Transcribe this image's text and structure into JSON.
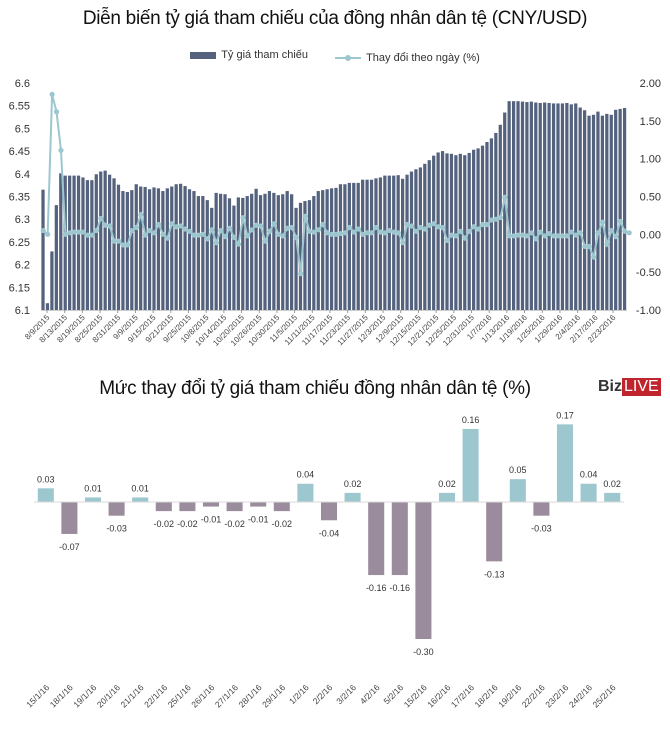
{
  "chart_data": [
    {
      "type": "bar+line",
      "title": "Diễn biến tỷ giá tham chiếu của đồng nhân dân tệ (CNY/USD)",
      "legend": [
        "Tỷ giá tham chiếu",
        "Thay đổi theo ngày (%)"
      ],
      "legend_position": "top-center",
      "y_left": {
        "ylim": [
          6.1,
          6.6
        ],
        "ticks": [
          "6.6",
          "6.55",
          "6.5",
          "6.45",
          "6.4",
          "6.35",
          "6.3",
          "6.25",
          "6.2",
          "6.15",
          "6.1"
        ]
      },
      "y_right": {
        "ylim": [
          -1.0,
          2.0
        ],
        "ticks": [
          "2.00",
          "1.50",
          "1.00",
          "0.50",
          "0.00",
          "-0.50",
          "-1.00"
        ]
      },
      "x_tick_labels": [
        "8/9/2015",
        "8/13/2015",
        "8/19/2015",
        "8/25/2015",
        "8/31/2015",
        "9/9/2015",
        "9/15/2015",
        "9/21/2015",
        "9/25/2015",
        "10/8/2015",
        "10/14/2015",
        "10/20/2015",
        "10/26/2015",
        "10/30/2015",
        "11/5/2015",
        "11/11/2015",
        "11/17/2015",
        "11/23/2015",
        "11/27/2015",
        "12/3/2015",
        "12/9/2015",
        "12/15/2015",
        "12/21/2015",
        "12/25/2015",
        "12/31/2015",
        "1/7/2016",
        "1/13/2016",
        "1/19/2016",
        "1/25/2016",
        "1/29/2016",
        "2/4/2016",
        "2/17/2016",
        "2/23/2016"
      ],
      "series": [
        {
          "name": "Tỷ giá tham chiếu",
          "type": "bar",
          "color": "#54627e",
          "values": [
            6.365,
            6.115,
            6.229,
            6.331,
            6.401,
            6.396,
            6.396,
            6.396,
            6.396,
            6.392,
            6.386,
            6.386,
            6.399,
            6.405,
            6.407,
            6.398,
            6.39,
            6.376,
            6.362,
            6.36,
            6.364,
            6.377,
            6.372,
            6.371,
            6.366,
            6.37,
            6.368,
            6.362,
            6.368,
            6.372,
            6.377,
            6.378,
            6.373,
            6.366,
            6.362,
            6.351,
            6.351,
            6.342,
            6.325,
            6.358,
            6.356,
            6.355,
            6.346,
            6.33,
            6.348,
            6.347,
            6.351,
            6.356,
            6.367,
            6.353,
            6.356,
            6.362,
            6.358,
            6.353,
            6.355,
            6.362,
            6.355,
            6.325,
            6.336,
            6.34,
            6.342,
            6.351,
            6.362,
            6.364,
            6.366,
            6.368,
            6.369,
            6.377,
            6.377,
            6.38,
            6.38,
            6.38,
            6.387,
            6.387,
            6.387,
            6.39,
            6.392,
            6.396,
            6.396,
            6.396,
            6.397,
            6.389,
            6.398,
            6.405,
            6.41,
            6.414,
            6.422,
            6.43,
            6.44,
            6.447,
            6.45,
            6.445,
            6.444,
            6.441,
            6.444,
            6.441,
            6.446,
            6.453,
            6.456,
            6.462,
            6.47,
            6.478,
            6.49,
            6.508,
            6.535,
            6.56,
            6.56,
            6.56,
            6.559,
            6.558,
            6.559,
            6.557,
            6.556,
            6.557,
            6.556,
            6.555,
            6.555,
            6.555,
            6.556,
            6.553,
            6.555,
            6.546,
            6.54,
            6.528,
            6.53,
            6.537,
            6.528,
            6.532,
            6.53,
            6.541,
            6.543,
            6.545
          ],
          "note": "bars between labelled ticks estimated from pixel height"
        },
        {
          "name": "Thay đổi theo ngày (%)",
          "type": "line",
          "axis": "right",
          "color": "#9cc7cf",
          "values": [
            0.05,
            -0.0,
            1.85,
            1.62,
            1.11,
            0.0,
            0.02,
            0.03,
            0.03,
            0.03,
            -0.01,
            -0.01,
            0.05,
            0.21,
            0.12,
            0.11,
            -0.09,
            -0.09,
            -0.14,
            -0.14,
            0.05,
            0.09,
            0.26,
            -0.01,
            0.05,
            0.02,
            0.13,
            0.0,
            -0.05,
            0.14,
            0.1,
            0.11,
            0.07,
            0.04,
            -0.01,
            -0.01,
            0.0,
            -0.06,
            0.06,
            -0.11,
            0.05,
            -0.03,
            0.08,
            -0.04,
            -0.13,
            0.22,
            -0.02,
            0.06,
            0.12,
            0.11,
            -0.09,
            0.04,
            0.14,
            0.0,
            -0.02,
            0.08,
            0.09,
            -0.04,
            -0.52,
            0.24,
            0.04,
            0.03,
            0.06,
            0.13,
            0.02,
            0.0,
            0.0,
            0.01,
            0.02,
            0.09,
            0.03,
            0.07,
            0.0,
            0.02,
            0.02,
            0.09,
            0.03,
            0.02,
            0.05,
            0.03,
            0.02,
            -0.11,
            0.13,
            0.11,
            0.04,
            0.09,
            0.07,
            0.12,
            0.14,
            0.1,
            0.09,
            -0.08,
            -0.01,
            -0.02,
            0.04,
            -0.05,
            0.04,
            0.1,
            0.07,
            0.13,
            0.13,
            0.19,
            0.2,
            0.22,
            0.49,
            -0.02,
            -0.02,
            -0.01,
            -0.01,
            -0.02,
            0.02,
            -0.06,
            0.03,
            -0.02,
            0.01,
            -0.02,
            -0.02,
            -0.02,
            -0.02,
            0.03,
            -0.01,
            0.02,
            -0.16,
            -0.16,
            -0.3,
            0.02,
            0.16,
            -0.13,
            0.05,
            -0.03,
            0.17,
            0.04,
            0.02
          ]
        }
      ]
    },
    {
      "type": "bar",
      "title": "Mức thay đổi tỷ giá tham chiếu đồng nhân dân tệ (%)",
      "categories": [
        "15/1/16",
        "18/1/16",
        "19/1/16",
        "20/1/16",
        "21/1/16",
        "22/1/16",
        "25/1/16",
        "26/1/16",
        "27/1/16",
        "28/1/16",
        "29/1/16",
        "1/2/16",
        "2/2/16",
        "3/2/16",
        "4/2/16",
        "5/2/16",
        "15/2/16",
        "16/2/16",
        "17/2/16",
        "18/2/16",
        "19/2/16",
        "22/2/16",
        "23/2/16",
        "24/2/16",
        "25/2/16"
      ],
      "values": [
        0.03,
        -0.07,
        0.01,
        -0.03,
        0.01,
        -0.02,
        -0.02,
        -0.01,
        -0.02,
        -0.01,
        -0.02,
        0.04,
        -0.04,
        0.02,
        -0.16,
        -0.16,
        -0.3,
        0.02,
        0.16,
        -0.13,
        0.05,
        -0.03,
        0.17,
        0.04,
        0.02
      ],
      "data_labels": [
        "0.03",
        "-0.07",
        "0.01",
        "-0.03",
        "0.01",
        "-0.02",
        "-0.02",
        "-0.01",
        "-0.02",
        "-0.01",
        "-0.02",
        "0.04",
        "-0.04",
        "0.02",
        "-0.16",
        "-0.16",
        "-0.30",
        "0.02",
        "0.16",
        "-0.13",
        "0.05",
        "-0.03",
        "0.17",
        "0.04",
        "0.02"
      ],
      "positive_color": "#9cc7cf",
      "negative_color": "#9a8c9c",
      "ylim": [
        -0.3,
        0.17
      ],
      "grid": false
    }
  ],
  "logo": {
    "part1": "Biz",
    "part2": "LIVE"
  }
}
